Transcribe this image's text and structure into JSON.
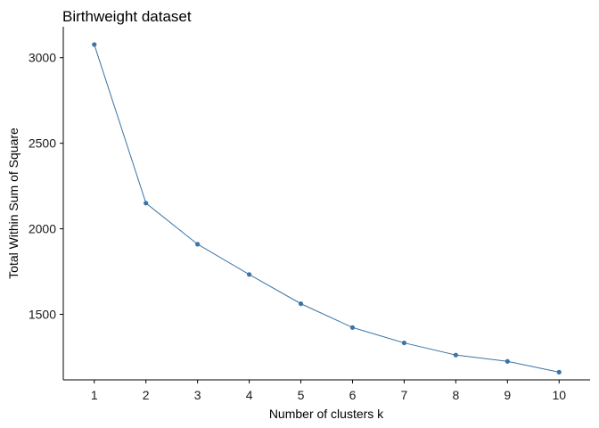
{
  "chart_data": {
    "type": "line",
    "title": "Birthweight dataset",
    "xlabel": "Number of clusters k",
    "ylabel": "Total Within Sum of Square",
    "x": [
      1,
      2,
      3,
      4,
      5,
      6,
      7,
      8,
      9,
      10
    ],
    "series": [
      {
        "values": [
          3077,
          2150,
          1910,
          1733,
          1562,
          1423,
          1333,
          1262,
          1225,
          1162
        ],
        "color": "#3A75A6"
      }
    ],
    "x_ticks": [
      "1",
      "2",
      "3",
      "4",
      "5",
      "6",
      "7",
      "8",
      "9",
      "10"
    ],
    "y_ticks": [
      1500,
      2000,
      2500,
      3000
    ],
    "y_tick_labels": [
      "1500",
      "2000",
      "2500",
      "3000"
    ],
    "xlim": [
      0.4,
      10.6
    ],
    "ylim": [
      1117,
      3181
    ],
    "grid": false,
    "legend": "none"
  }
}
